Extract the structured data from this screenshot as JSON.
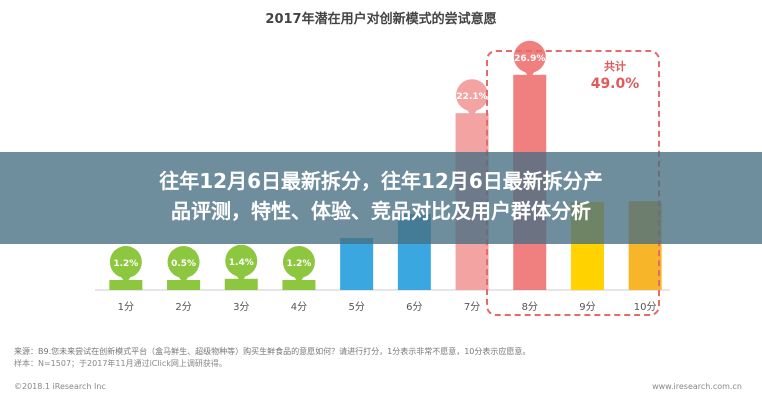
{
  "chart_data": {
    "type": "bar",
    "title": "2017年潜在用户对创新模式的尝试意愿",
    "categories": [
      "1分",
      "2分",
      "3分",
      "4分",
      "5分",
      "6分",
      "7分",
      "8分",
      "9分",
      "10分"
    ],
    "values": [
      1.2,
      0.5,
      1.4,
      1.2,
      6.5,
      9.5,
      22.1,
      26.9,
      11.0,
      11.1
    ],
    "value_labels": [
      "1.2%",
      "0.5%",
      "1.4%",
      "1.2%",
      "",
      "",
      "22.1%",
      "26.9%",
      "",
      ""
    ],
    "colors": [
      "#8dc63f",
      "#8dc63f",
      "#8dc63f",
      "#8dc63f",
      "#3ba7e0",
      "#3ba7e0",
      "#f4a3a3",
      "#f07f7f",
      "#ffd200",
      "#f7b62a"
    ],
    "ylim": [
      0,
      30
    ],
    "xlabel": "",
    "ylabel": ""
  },
  "total": {
    "label": "共计",
    "value": "49.0%"
  },
  "banner": {
    "line1": "往年12月6日最新拆分，往年12月6日最新拆分产",
    "line2": "品评测，特性、体验、竞品对比及用户群体分析"
  },
  "footnote": "来源：B9.您未来尝试在创新模式平台（盒马鲜生、超级物种等）购买生鲜食品的意愿如何？请进行打分，1分表示非常不愿意，10分表示应愿意。",
  "footnote2": "样本：N=1507；于2017年11月通过iClick网上调研获得。",
  "copyright": "©2018.1 iResearch Inc",
  "website": "www.iresearch.com.cn"
}
